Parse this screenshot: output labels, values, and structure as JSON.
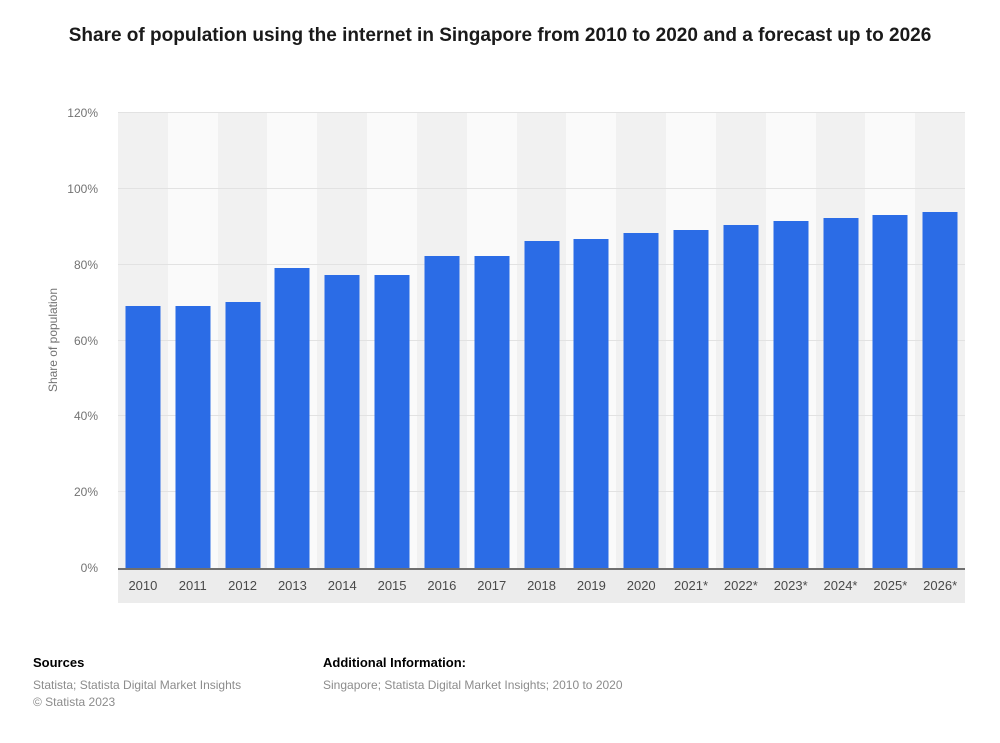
{
  "title": "Share of population using the internet in Singapore from 2010 to 2020 and a forecast up to 2026",
  "chart_data": {
    "type": "bar",
    "categories": [
      "2010",
      "2011",
      "2012",
      "2013",
      "2014",
      "2015",
      "2016",
      "2017",
      "2018",
      "2019",
      "2020",
      "2021*",
      "2022*",
      "2023*",
      "2024*",
      "2025*",
      "2026*"
    ],
    "values": [
      69,
      69,
      70.1,
      79,
      77.2,
      77.2,
      82.3,
      82.3,
      86.2,
      86.9,
      88.3,
      89.2,
      90.5,
      91.4,
      92.3,
      93.1,
      93.9
    ],
    "title": "Share of population using the internet in Singapore from 2010 to 2020 and a forecast up to 2026",
    "xlabel": "",
    "ylabel": "Share of population",
    "ylim": [
      0,
      120
    ],
    "yticks": [
      0,
      20,
      40,
      60,
      80,
      100,
      120
    ],
    "ytick_suffix": "%",
    "grid": true,
    "legend": "none",
    "bar_color": "#2b6ce6",
    "stripe_color_even": "#f1f1f1",
    "stripe_color_odd": "#fafafa"
  },
  "footer": {
    "sources_label": "Sources",
    "sources_text": "Statista; Statista Digital Market Insights",
    "copyright": "© Statista 2023",
    "additional_label": "Additional Information:",
    "additional_text": "Singapore; Statista Digital Market Insights; 2010 to 2020"
  }
}
